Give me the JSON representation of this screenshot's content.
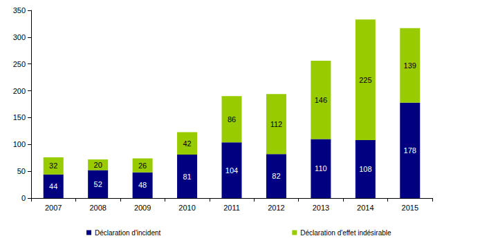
{
  "chart_data": {
    "type": "bar",
    "stacked": true,
    "categories": [
      "2007",
      "2008",
      "2009",
      "2010",
      "2011",
      "2012",
      "2013",
      "2014",
      "2015"
    ],
    "series": [
      {
        "name": "Déclaration d'incident",
        "color": "#000080",
        "values": [
          44,
          52,
          48,
          81,
          104,
          82,
          110,
          108,
          178
        ]
      },
      {
        "name": "Déclaration d'effet indésirable",
        "color": "#99cc00",
        "values": [
          32,
          20,
          26,
          42,
          86,
          112,
          146,
          225,
          139
        ]
      }
    ],
    "ylim": [
      0,
      350
    ],
    "yticks": [
      0,
      50,
      100,
      150,
      200,
      250,
      300,
      350
    ],
    "grid": false,
    "legend": "bottom",
    "data_labels": true
  }
}
